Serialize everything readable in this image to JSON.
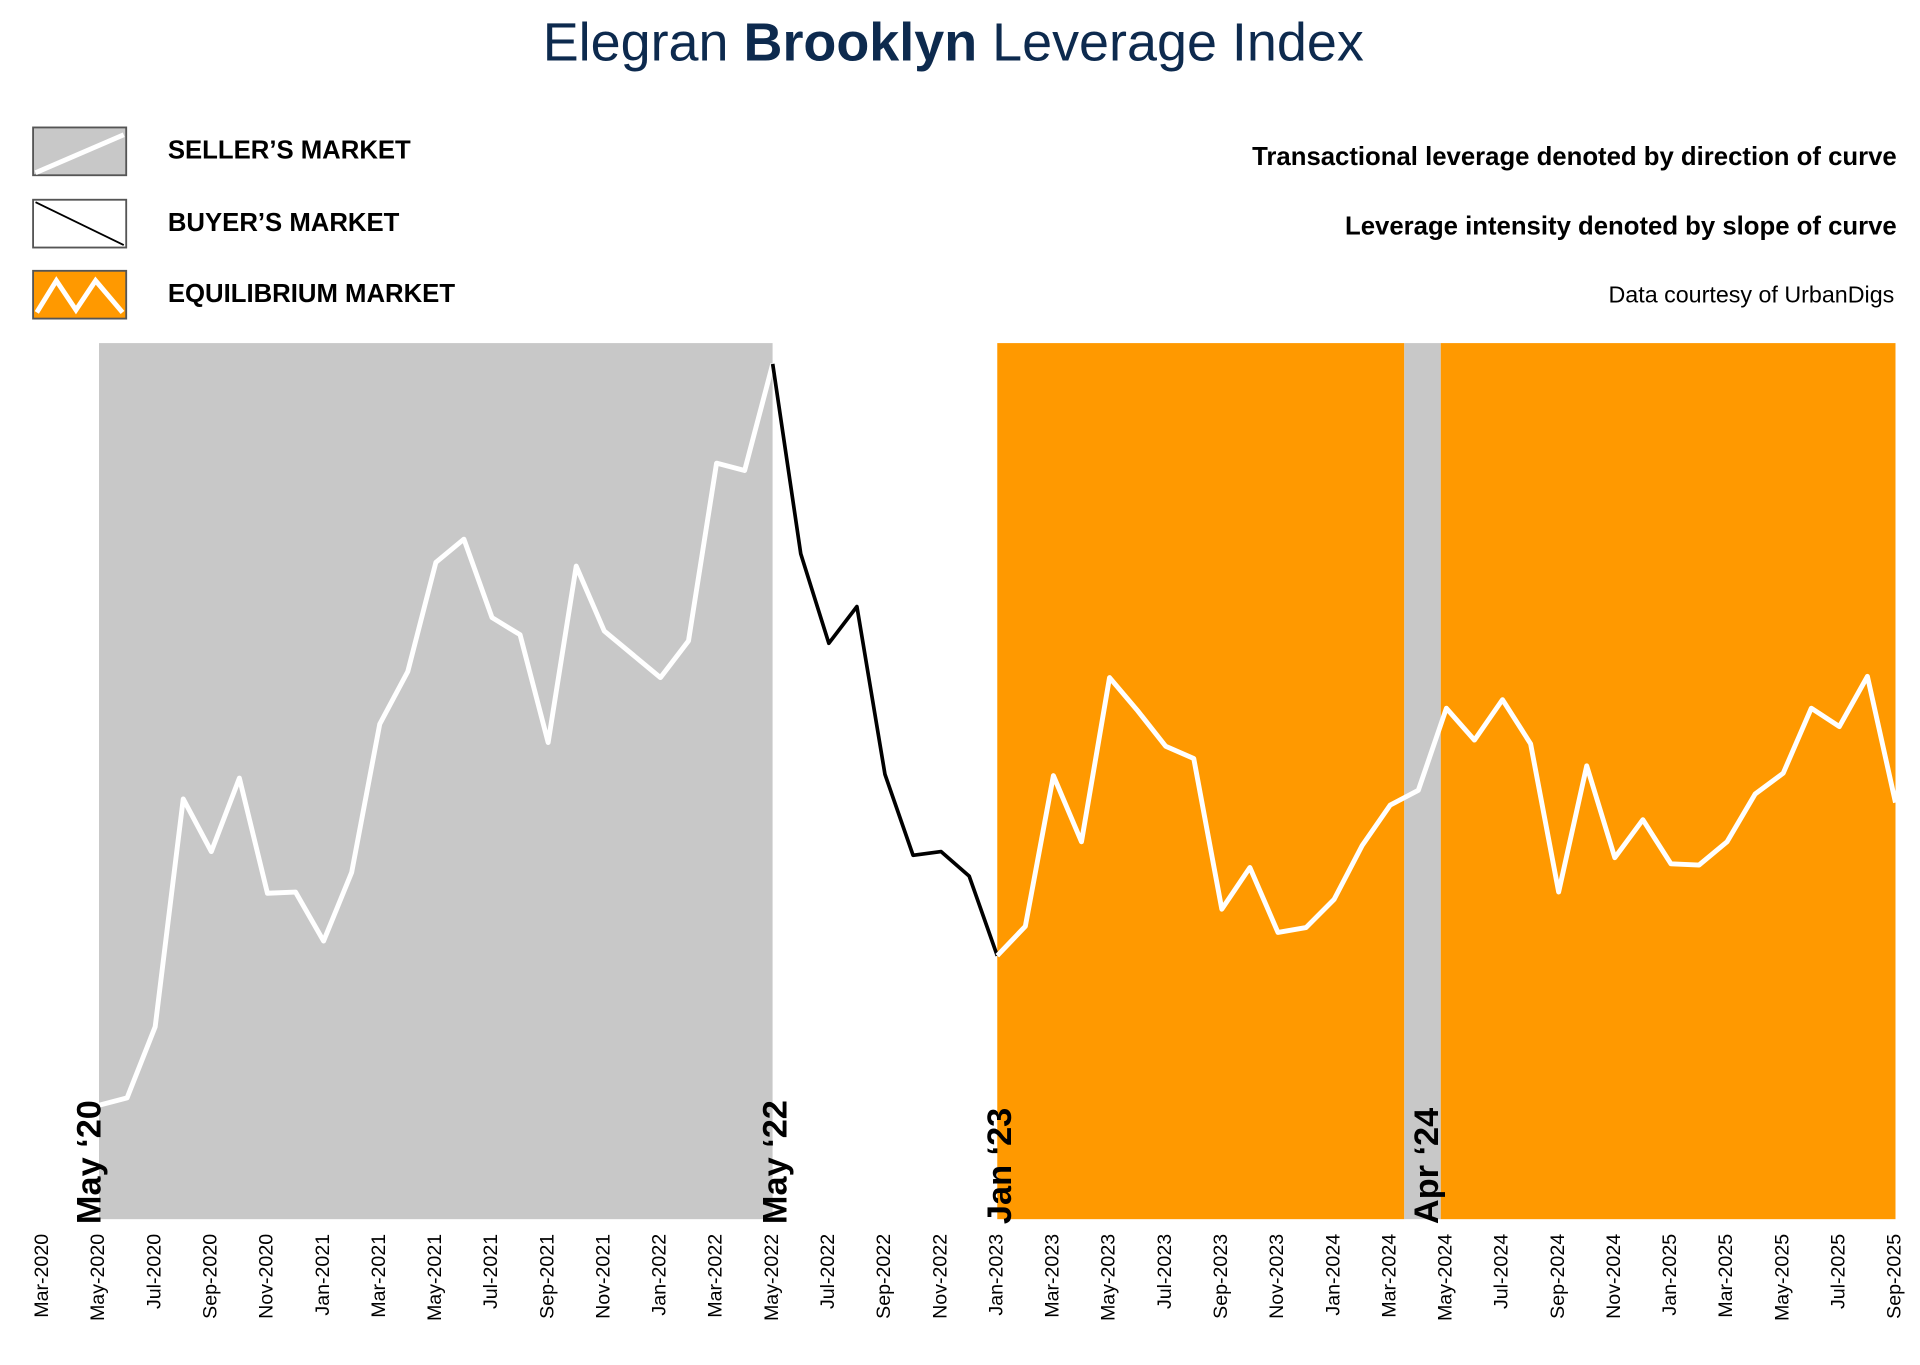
{
  "chart_data": {
    "type": "line",
    "title_prefix": "Elegran",
    "title_bold": "Brooklyn",
    "title_suffix": "Leverage Index",
    "notes": [
      "Transactional leverage denoted by direction of curve",
      "Leverage intensity denoted by slope of curve",
      "Data courtesy of UrbanDigs"
    ],
    "legend": [
      {
        "market": "seller",
        "name": "SELLER’S MARKET",
        "color": "#c8c8c8",
        "line_color": "#ffffff"
      },
      {
        "market": "buyer",
        "name": "BUYER’S MARKET",
        "color": "#ffffff",
        "line_color": "#000000"
      },
      {
        "market": "equilibrium",
        "name": "EQUILIBRIUM MARKET",
        "color": "#ff9900",
        "line_color": "#ffffff"
      }
    ],
    "regions": [
      {
        "market": "seller",
        "start": 2,
        "end": 26,
        "label": "May ‘20"
      },
      {
        "market": "buyer",
        "start": 26,
        "end": 34,
        "label": "May ‘22"
      },
      {
        "market": "equilibrium",
        "start": 34,
        "end": 48.5,
        "label": "Jan ‘23"
      },
      {
        "market": "seller",
        "start": 48.5,
        "end": 49.8,
        "label": "Apr ‘24"
      },
      {
        "market": "equilibrium",
        "start": 49.8,
        "end": 66,
        "label": null
      }
    ],
    "categories": [
      "Mar-2020",
      null,
      "May-2020",
      null,
      "Jul-2020",
      null,
      "Sep-2020",
      null,
      "Nov-2020",
      null,
      "Jan-2021",
      null,
      "Mar-2021",
      null,
      "May-2021",
      null,
      "Jul-2021",
      null,
      "Sep-2021",
      null,
      "Nov-2021",
      null,
      "Jan-2022",
      null,
      "Mar-2022",
      null,
      "May-2022",
      null,
      "Jul-2022",
      null,
      "Sep-2022",
      null,
      "Nov-2022",
      null,
      "Jan-2023",
      null,
      "Mar-2023",
      null,
      "May-2023",
      null,
      "Jul-2023",
      null,
      "Sep-2023",
      null,
      "Nov-2023",
      null,
      "Jan-2024",
      null,
      "Mar-2024",
      null,
      "May-2024",
      null,
      "Jul-2024",
      null,
      "Sep-2024",
      null,
      "Nov-2024",
      null,
      "Jan-2025",
      null,
      "Mar-2025",
      null,
      "May-2025",
      null,
      "Jul-2025",
      null,
      "Sep-2025"
    ],
    "values": [
      null,
      null,
      93,
      99,
      157,
      343,
      300,
      360,
      266,
      267,
      227,
      283,
      404,
      447,
      536,
      555,
      491,
      477,
      389,
      533,
      480,
      461,
      442,
      472,
      617,
      611,
      698,
      543,
      470,
      500,
      363,
      297,
      300,
      280,
      215,
      239,
      362,
      308,
      442,
      415,
      386,
      376,
      253,
      287,
      234,
      238,
      261,
      305,
      338,
      350,
      417,
      391,
      424,
      388,
      267,
      370,
      295,
      326,
      290,
      289,
      308,
      347,
      364,
      417,
      402,
      443,
      340
    ],
    "ylim": [
      0,
      715
    ]
  }
}
